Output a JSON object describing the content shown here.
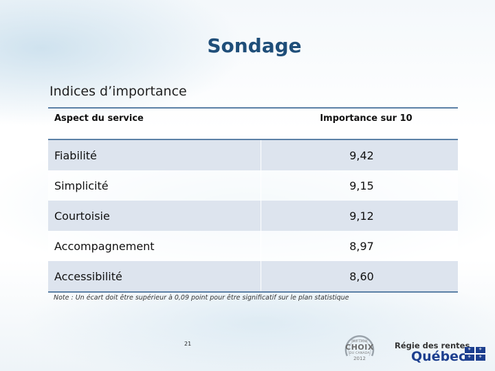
{
  "slide": {
    "title": "Sondage",
    "subtitle": "Indices d’importance"
  },
  "table": {
    "headers": [
      "Aspect du service",
      "Importance sur 10"
    ],
    "rows": [
      {
        "aspect": "Fiabilité",
        "importance": "9,42"
      },
      {
        "aspect": "Simplicité",
        "importance": "9,15"
      },
      {
        "aspect": "Courtoisie",
        "importance": "9,12"
      },
      {
        "aspect": "Accompagnement",
        "importance": "8,97"
      },
      {
        "aspect": "Accessibilité",
        "importance": "8,60"
      }
    ]
  },
  "note": "Note :  Un écart doit être supérieur à 0,09 point pour être significatif sur le plan statistique",
  "page_number": "21",
  "logos": {
    "award": {
      "line1": "PRIX CHOIX",
      "line2": "CHOIX",
      "line3": "DU CANADA",
      "line4": "2012"
    },
    "organization_top": "Régie des rentes",
    "organization_main": "Québec"
  },
  "colors": {
    "title": "#1f4e79",
    "rule": "#5b80a6",
    "row_shade": "#dde4ee",
    "quebec_blue": "#1d3f8f"
  }
}
